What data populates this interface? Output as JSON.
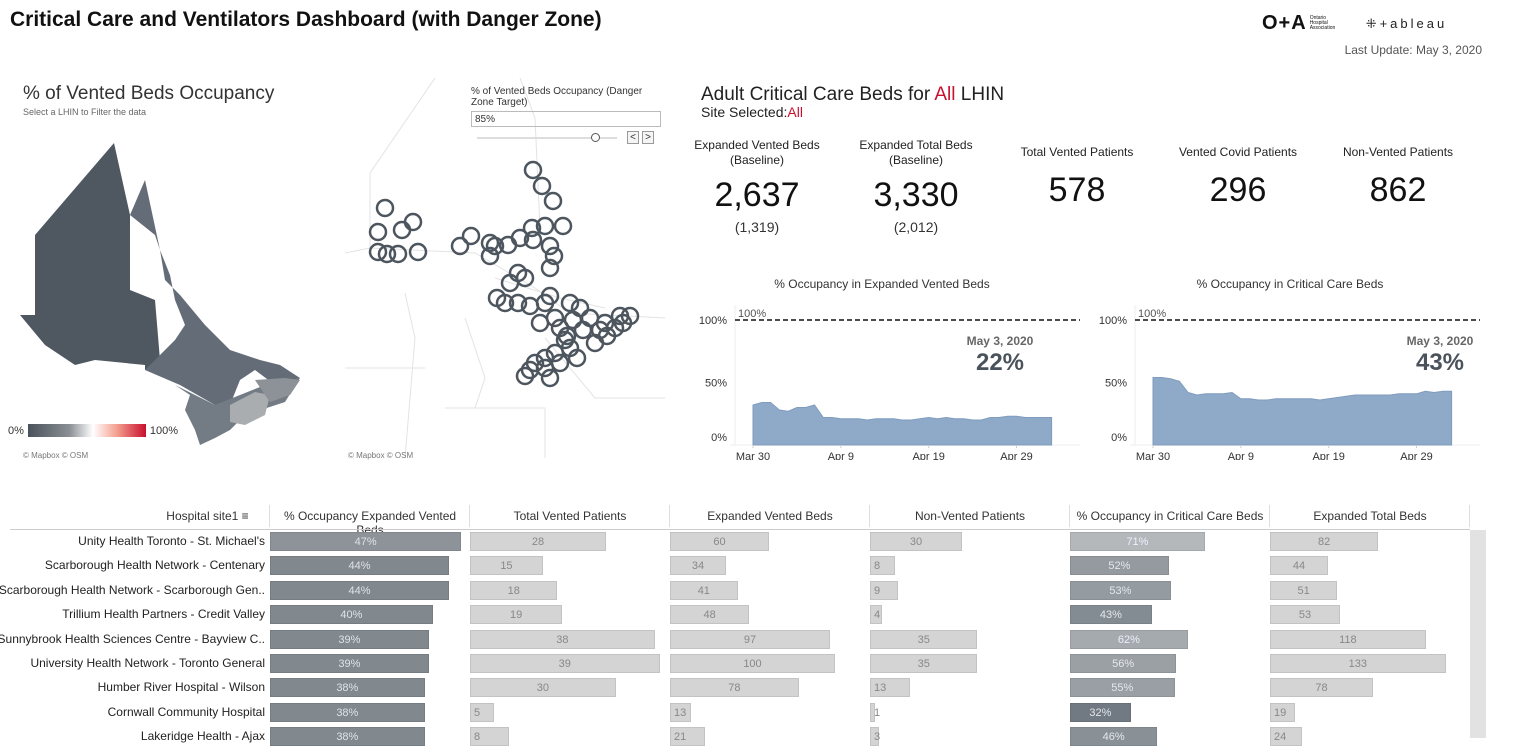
{
  "header": {
    "title": "Critical Care and Ventilators Dashboard (with Danger Zone)",
    "oha_logo": "O+A",
    "oha_sub": "Ontario Hospital Association",
    "tableau_logo": "+ableau",
    "last_update": "Last Update: May 3, 2020"
  },
  "map": {
    "title": "% of Vented Beds Occupancy",
    "subtitle": "Select a LHIN to Filter the data",
    "legend_min": "0%",
    "legend_max": "100%",
    "credit": "© Mapbox  © OSM",
    "credit2": "© Mapbox  © OSM"
  },
  "slider": {
    "label": "% of Vented Beds Occupancy (Danger Zone Target)",
    "value": "85%",
    "prev": "<",
    "next": ">",
    "level": 85
  },
  "summary": {
    "title_prefix": "Adult Critical Care Beds for ",
    "title_sel": "All",
    "title_suffix": " LHIN",
    "site_prefix": "Site Selected:",
    "site_sel": "All",
    "kpis": [
      {
        "label": "Expanded Vented Beds (Baseline)",
        "value": "2,637",
        "baseline": "(1,319)"
      },
      {
        "label": "Expanded Total Beds (Baseline)",
        "value": "3,330",
        "baseline": "(2,012)"
      },
      {
        "label": "Total Vented Patients",
        "value": "578"
      },
      {
        "label": "Vented Covid Patients",
        "value": "296"
      },
      {
        "label": "Non-Vented Patients",
        "value": "862"
      }
    ]
  },
  "chart_data": [
    {
      "type": "area",
      "title": "% Occupancy in Expanded Vented Beds",
      "ytick_labels": [
        "0%",
        "50%",
        "100%"
      ],
      "ylim": [
        0,
        100
      ],
      "xtick_labels": [
        "Mar 30",
        "Apr 9",
        "Apr 19",
        "Apr 29"
      ],
      "reference_line": {
        "value": 100,
        "label": "100%"
      },
      "annotation": {
        "date": "May 3, 2020",
        "value": "22%"
      },
      "color": "#8faac8",
      "x": [
        "Mar 30",
        "Mar 31",
        "Apr 1",
        "Apr 2",
        "Apr 3",
        "Apr 4",
        "Apr 5",
        "Apr 6",
        "Apr 7",
        "Apr 8",
        "Apr 9",
        "Apr 10",
        "Apr 11",
        "Apr 12",
        "Apr 13",
        "Apr 14",
        "Apr 15",
        "Apr 16",
        "Apr 17",
        "Apr 18",
        "Apr 19",
        "Apr 20",
        "Apr 21",
        "Apr 22",
        "Apr 23",
        "Apr 24",
        "Apr 25",
        "Apr 26",
        "Apr 27",
        "Apr 28",
        "Apr 29",
        "Apr 30",
        "May 1",
        "May 2",
        "May 3"
      ],
      "values": [
        32,
        34,
        34,
        28,
        27,
        30,
        30,
        32,
        22,
        22,
        21,
        21,
        21,
        20,
        21,
        21,
        21,
        20,
        20,
        21,
        22,
        21,
        22,
        21,
        21,
        20,
        20,
        22,
        22,
        23,
        23,
        22,
        22,
        22,
        22
      ]
    },
    {
      "type": "area",
      "title": "% Occupancy in Critical Care Beds",
      "ytick_labels": [
        "0%",
        "50%",
        "100%"
      ],
      "ylim": [
        0,
        100
      ],
      "xtick_labels": [
        "Mar 30",
        "Apr 9",
        "Apr 19",
        "Apr 29"
      ],
      "reference_line": {
        "value": 100,
        "label": "100%"
      },
      "annotation": {
        "date": "May 3, 2020",
        "value": "43%"
      },
      "color": "#8faac8",
      "x": [
        "Mar 30",
        "Mar 31",
        "Apr 1",
        "Apr 2",
        "Apr 3",
        "Apr 4",
        "Apr 5",
        "Apr 6",
        "Apr 7",
        "Apr 8",
        "Apr 9",
        "Apr 10",
        "Apr 11",
        "Apr 12",
        "Apr 13",
        "Apr 14",
        "Apr 15",
        "Apr 16",
        "Apr 17",
        "Apr 18",
        "Apr 19",
        "Apr 20",
        "Apr 21",
        "Apr 22",
        "Apr 23",
        "Apr 24",
        "Apr 25",
        "Apr 26",
        "Apr 27",
        "Apr 28",
        "Apr 29",
        "Apr 30",
        "May 1",
        "May 2",
        "May 3"
      ],
      "values": [
        54,
        54,
        53,
        51,
        42,
        40,
        41,
        41,
        41,
        42,
        37,
        37,
        36,
        36,
        37,
        37,
        37,
        37,
        37,
        36,
        37,
        38,
        39,
        40,
        40,
        40,
        40,
        40,
        41,
        41,
        41,
        43,
        42,
        43,
        43
      ]
    }
  ],
  "table": {
    "row_header": "Hospital site1",
    "columns": [
      "% Occupancy Expanded Vented Beds",
      "Total Vented Patients",
      "Expanded Vented Beds",
      "Non-Vented Patients",
      "% Occupancy in Critical Care Beds",
      "Expanded Total Beds"
    ],
    "rows": [
      {
        "name": "Unity Health Toronto - St. Michael's",
        "v": [
          "47%",
          "28",
          "60",
          "30",
          "71%",
          "82"
        ]
      },
      {
        "name": "Scarborough Health Network - Centenary",
        "v": [
          "44%",
          "15",
          "34",
          "8",
          "52%",
          "44"
        ]
      },
      {
        "name": "Scarborough Health Network - Scarborough Gen..",
        "v": [
          "44%",
          "18",
          "41",
          "9",
          "53%",
          "51"
        ]
      },
      {
        "name": "Trillium Health Partners - Credit Valley",
        "v": [
          "40%",
          "19",
          "48",
          "4",
          "43%",
          "53"
        ]
      },
      {
        "name": "Sunnybrook Health Sciences Centre - Bayview C..",
        "v": [
          "39%",
          "38",
          "97",
          "35",
          "62%",
          "118"
        ]
      },
      {
        "name": "University Health Network - Toronto General",
        "v": [
          "39%",
          "39",
          "100",
          "35",
          "56%",
          "133"
        ]
      },
      {
        "name": "Humber River Hospital - Wilson",
        "v": [
          "38%",
          "30",
          "78",
          "13",
          "55%",
          "78"
        ]
      },
      {
        "name": "Cornwall Community Hospital",
        "v": [
          "38%",
          "5",
          "13",
          "1",
          "32%",
          "19"
        ]
      },
      {
        "name": "Lakeridge Health - Ajax",
        "v": [
          "38%",
          "8",
          "21",
          "3",
          "46%",
          "24"
        ]
      }
    ]
  }
}
